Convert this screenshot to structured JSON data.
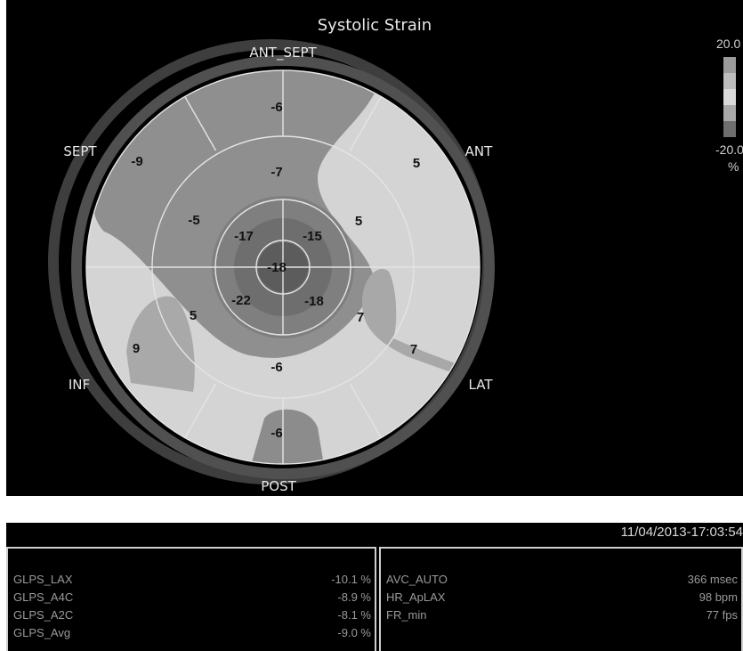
{
  "viewer": {
    "title": "Systolic Strain",
    "labels": {
      "ant_sept": "ANT_SEPT",
      "ant": "ANT",
      "sept": "SEPT",
      "inf": "INF",
      "lat": "LAT",
      "post": "POST"
    },
    "segments": {
      "basal_ant_sept": "-6",
      "basal_sept": "-9",
      "basal_ant": "5",
      "basal_inf": "9",
      "basal_lat": "7",
      "basal_post": "-6",
      "mid_ant_sept": "-7",
      "mid_sept": "-5",
      "mid_ant": "5",
      "mid_inf": "5",
      "mid_lat": "7",
      "mid_post": "-6",
      "apical_sept": "-17",
      "apical_ant": "-15",
      "apical_inf": "-22",
      "apical_lat": "-18",
      "apex": "-18"
    },
    "scale": {
      "max": "20.0",
      "min": "-20.0",
      "unit": "%"
    }
  },
  "panel": {
    "timestamp": "11/04/2013-17:03:54",
    "left_rows": [
      {
        "label": "GLPS_LAX",
        "value": "-10.1 %"
      },
      {
        "label": "GLPS_A4C",
        "value": "-8.9 %"
      },
      {
        "label": "GLPS_A2C",
        "value": "-8.1 %"
      },
      {
        "label": "GLPS_Avg",
        "value": "-9.0 %"
      }
    ],
    "right_rows": [
      {
        "label": "AVC_AUTO",
        "value": "366 msec"
      },
      {
        "label": "HR_ApLAX",
        "value": "98 bpm"
      },
      {
        "label": "FR_min",
        "value": "77 fps"
      }
    ]
  }
}
